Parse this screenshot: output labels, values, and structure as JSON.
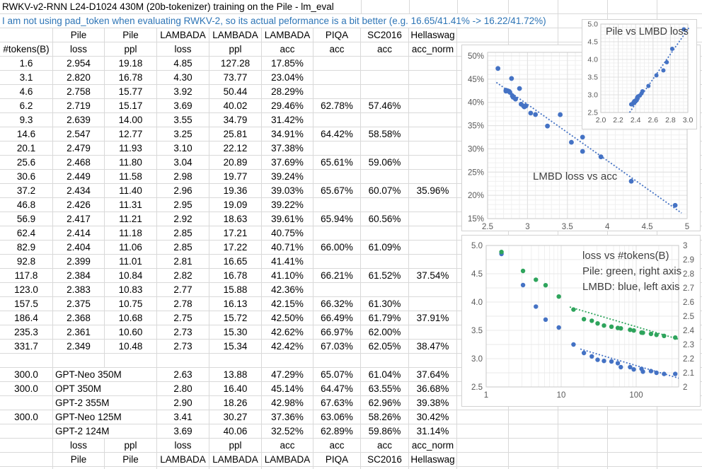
{
  "title": "RWKV-v2-RNN L24-D1024 430M (20b-tokenizer) training on the Pile - lm_eval",
  "subtitle": "I am not using pad_token when evaluating RWKV-2, so its actual peformance is a bit better (e.g. 16.65/41.41% -> 16.22/41.72%)",
  "colors": {
    "note_blue": "#2E75B6",
    "series_blue": "#4472C4",
    "series_green": "#2EA45C",
    "axis_label_gray": "#595959",
    "chart_text": "#404040",
    "gridline": "#d9d9d9"
  },
  "table": {
    "header_row1": [
      "",
      "Pile",
      "Pile",
      "LAMBADA",
      "LAMBADA",
      "LAMBADA",
      "PIQA",
      "SC2016",
      "Hellaswag"
    ],
    "header_row2": [
      "#tokens(B)",
      "loss",
      "ppl",
      "loss",
      "ppl",
      "acc",
      "acc",
      "acc",
      "acc_norm"
    ],
    "rows": [
      [
        "1.6",
        "2.954",
        "19.18",
        "4.85",
        "127.28",
        "17.85%",
        "",
        "",
        ""
      ],
      [
        "3.1",
        "2.820",
        "16.78",
        "4.30",
        "73.77",
        "23.04%",
        "",
        "",
        ""
      ],
      [
        "4.6",
        "2.758",
        "15.77",
        "3.92",
        "50.44",
        "28.29%",
        "",
        "",
        ""
      ],
      [
        "6.2",
        "2.719",
        "15.17",
        "3.69",
        "40.02",
        "29.46%",
        "62.78%",
        "57.46%",
        ""
      ],
      [
        "9.3",
        "2.639",
        "14.00",
        "3.55",
        "34.79",
        "31.42%",
        "",
        "",
        ""
      ],
      [
        "14.6",
        "2.547",
        "12.77",
        "3.25",
        "25.81",
        "34.91%",
        "64.42%",
        "58.58%",
        ""
      ],
      [
        "20.1",
        "2.479",
        "11.93",
        "3.10",
        "22.12",
        "37.38%",
        "",
        "",
        ""
      ],
      [
        "25.6",
        "2.468",
        "11.80",
        "3.04",
        "20.89",
        "37.69%",
        "65.61%",
        "59.06%",
        ""
      ],
      [
        "30.6",
        "2.449",
        "11.58",
        "2.98",
        "19.77",
        "39.24%",
        "",
        "",
        ""
      ],
      [
        "37.2",
        "2.434",
        "11.40",
        "2.96",
        "19.36",
        "39.03%",
        "65.67%",
        "60.07%",
        "35.96%"
      ],
      [
        "46.8",
        "2.426",
        "11.31",
        "2.95",
        "19.09",
        "39.22%",
        "",
        "",
        ""
      ],
      [
        "56.9",
        "2.417",
        "11.21",
        "2.92",
        "18.63",
        "39.61%",
        "65.94%",
        "60.56%",
        ""
      ],
      [
        "62.4",
        "2.414",
        "11.18",
        "2.85",
        "17.21",
        "40.75%",
        "",
        "",
        ""
      ],
      [
        "82.9",
        "2.404",
        "11.06",
        "2.85",
        "17.22",
        "40.71%",
        "66.00%",
        "61.09%",
        ""
      ],
      [
        "92.8",
        "2.399",
        "11.01",
        "2.81",
        "16.65",
        "41.41%",
        "",
        "",
        ""
      ],
      [
        "117.8",
        "2.384",
        "10.84",
        "2.82",
        "16.78",
        "41.10%",
        "66.21%",
        "61.52%",
        "37.54%"
      ],
      [
        "123.0",
        "2.383",
        "10.83",
        "2.77",
        "15.88",
        "42.36%",
        "",
        "",
        ""
      ],
      [
        "157.5",
        "2.375",
        "10.75",
        "2.78",
        "16.13",
        "42.15%",
        "66.32%",
        "61.30%",
        ""
      ],
      [
        "186.4",
        "2.368",
        "10.68",
        "2.75",
        "15.72",
        "42.50%",
        "66.49%",
        "61.79%",
        "37.91%"
      ],
      [
        "235.3",
        "2.361",
        "10.60",
        "2.73",
        "15.30",
        "42.62%",
        "66.97%",
        "62.00%",
        ""
      ],
      [
        "331.7",
        "2.349",
        "10.48",
        "2.73",
        "15.34",
        "42.42%",
        "67.03%",
        "62.05%",
        "38.47%"
      ]
    ],
    "comparison_rows": [
      [
        "300.0",
        "GPT-Neo 350M",
        "2.63",
        "13.88",
        "47.29%",
        "65.07%",
        "61.04%",
        "37.64%"
      ],
      [
        "300.0",
        "OPT 350M",
        "2.80",
        "16.40",
        "45.14%",
        "64.47%",
        "63.55%",
        "36.68%"
      ],
      [
        "",
        "GPT-2 355M",
        "2.90",
        "18.26",
        "42.98%",
        "67.63%",
        "62.96%",
        "39.38%"
      ],
      [
        "300.0",
        "GPT-Neo 125M",
        "3.41",
        "30.27",
        "37.36%",
        "63.06%",
        "58.26%",
        "30.42%"
      ],
      [
        "",
        "GPT-2 124M",
        "3.69",
        "40.06",
        "32.52%",
        "62.89%",
        "59.86%",
        "31.14%"
      ]
    ],
    "footer_row1": [
      "",
      "loss",
      "ppl",
      "loss",
      "ppl",
      "acc",
      "acc",
      "acc",
      "acc_norm"
    ],
    "footer_row2": [
      "",
      "Pile",
      "Pile",
      "LAMBADA",
      "LAMBADA",
      "LAMBADA",
      "PIQA",
      "SC2016",
      "Hellaswag"
    ]
  },
  "chart_data": [
    {
      "type": "scatter",
      "title": "Pile vs LMBD loss",
      "x_range": [
        2.0,
        3.0
      ],
      "y_range": [
        2.5,
        5.0
      ],
      "x_ticks": [
        2.0,
        2.2,
        2.4,
        2.6,
        2.8,
        3.0
      ],
      "y_ticks": [
        2.5,
        3.0,
        3.5,
        4.0,
        4.5,
        5.0
      ],
      "color": "#4472C4",
      "points": [
        [
          2.954,
          4.85
        ],
        [
          2.82,
          4.3
        ],
        [
          2.758,
          3.92
        ],
        [
          2.719,
          3.69
        ],
        [
          2.639,
          3.55
        ],
        [
          2.547,
          3.25
        ],
        [
          2.479,
          3.1
        ],
        [
          2.468,
          3.04
        ],
        [
          2.449,
          2.98
        ],
        [
          2.434,
          2.96
        ],
        [
          2.426,
          2.95
        ],
        [
          2.417,
          2.92
        ],
        [
          2.414,
          2.85
        ],
        [
          2.404,
          2.85
        ],
        [
          2.399,
          2.81
        ],
        [
          2.384,
          2.82
        ],
        [
          2.383,
          2.77
        ],
        [
          2.375,
          2.78
        ],
        [
          2.368,
          2.75
        ],
        [
          2.361,
          2.73
        ],
        [
          2.349,
          2.73
        ]
      ],
      "trend": {
        "x1": 2.33,
        "y1": 2.5,
        "x2": 3.02,
        "y2": 4.92
      }
    },
    {
      "type": "scatter",
      "title": "LMBD loss vs acc",
      "x_range": [
        2.5,
        5.0
      ],
      "y_range": [
        15,
        50
      ],
      "x_ticks": [
        2.5,
        3,
        3.5,
        4,
        4.5,
        5
      ],
      "y_ticks": [
        15,
        20,
        25,
        30,
        35,
        40,
        45,
        50
      ],
      "y_tick_suffix": "%",
      "color": "#4472C4",
      "points": [
        [
          4.85,
          17.85
        ],
        [
          4.3,
          23.04
        ],
        [
          3.92,
          28.29
        ],
        [
          3.69,
          29.46
        ],
        [
          3.55,
          31.42
        ],
        [
          3.25,
          34.91
        ],
        [
          3.1,
          37.38
        ],
        [
          3.04,
          37.69
        ],
        [
          2.98,
          39.24
        ],
        [
          2.96,
          39.03
        ],
        [
          2.95,
          39.22
        ],
        [
          2.92,
          39.61
        ],
        [
          2.85,
          40.75
        ],
        [
          2.85,
          40.71
        ],
        [
          2.81,
          41.41
        ],
        [
          2.82,
          41.1
        ],
        [
          2.77,
          42.36
        ],
        [
          2.78,
          42.15
        ],
        [
          2.75,
          42.5
        ],
        [
          2.73,
          42.62
        ],
        [
          2.73,
          42.42
        ],
        [
          2.63,
          47.29
        ],
        [
          2.8,
          45.14
        ],
        [
          2.9,
          42.98
        ],
        [
          3.41,
          37.36
        ],
        [
          3.69,
          32.52
        ]
      ],
      "trend": {
        "x1": 2.61,
        "y1": 44.3,
        "x2": 4.93,
        "y2": 16.2
      }
    },
    {
      "type": "scatter",
      "title": "loss vs #tokens(B)",
      "annotation": [
        "loss vs #tokens(B)",
        "Pile: green, right axis",
        "LMBD: blue, left axis"
      ],
      "x_log_ticks": [
        1,
        10,
        100
      ],
      "left_axis_range": [
        2.5,
        5.0
      ],
      "left_axis_ticks": [
        2.5,
        3.0,
        3.5,
        4.0,
        4.5,
        5.0
      ],
      "right_axis_range": [
        2,
        3
      ],
      "right_axis_ticks": [
        2,
        2.1,
        2.2,
        2.3,
        2.4,
        2.5,
        2.6,
        2.7,
        2.8,
        2.9,
        3
      ],
      "tokens": [
        1.6,
        3.1,
        4.6,
        6.2,
        9.3,
        14.6,
        20.1,
        25.6,
        30.6,
        37.2,
        46.8,
        56.9,
        62.4,
        82.9,
        92.8,
        117.8,
        123.0,
        157.5,
        186.4,
        235.3,
        331.7
      ],
      "series": [
        {
          "name": "LMBD",
          "axis": "left",
          "color": "#4472C4",
          "values": [
            4.85,
            4.3,
            3.92,
            3.69,
            3.55,
            3.25,
            3.1,
            3.04,
            2.98,
            2.96,
            2.95,
            2.92,
            2.85,
            2.85,
            2.81,
            2.82,
            2.77,
            2.78,
            2.75,
            2.73,
            2.73
          ],
          "trend": {
            "t1": 18,
            "v1": 3.17,
            "t2": 370,
            "v2": 2.655
          }
        },
        {
          "name": "Pile",
          "axis": "right",
          "color": "#2EA45C",
          "values": [
            2.954,
            2.82,
            2.758,
            2.719,
            2.639,
            2.547,
            2.479,
            2.468,
            2.449,
            2.434,
            2.426,
            2.417,
            2.414,
            2.404,
            2.399,
            2.384,
            2.383,
            2.375,
            2.368,
            2.361,
            2.349
          ],
          "trend": {
            "t1": 13,
            "v1": 2.565,
            "t2": 370,
            "v2": 2.337
          }
        }
      ]
    }
  ]
}
